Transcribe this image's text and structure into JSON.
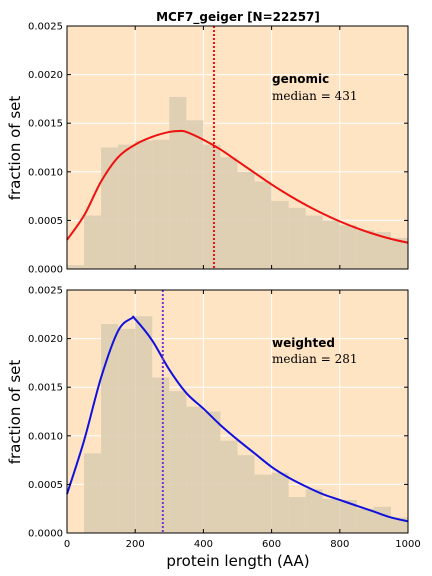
{
  "chart_data": [
    {
      "type": "bar",
      "title": "MCF7_geiger [N=22257]",
      "ylabel": "fraction of set",
      "xlabel": "",
      "xlim": [
        0,
        1000
      ],
      "ylim": [
        0,
        0.0025
      ],
      "y_ticks": [
        "0.0000",
        "0.0005",
        "0.0010",
        "0.0015",
        "0.0020",
        "0.0025"
      ],
      "x_ticks": [],
      "bin_edges": [
        0,
        50,
        100,
        150,
        200,
        250,
        300,
        350,
        400,
        450,
        500,
        550,
        600,
        650,
        700,
        750,
        800,
        850,
        900,
        950,
        1000
      ],
      "values": [
        4e-05,
        0.00055,
        0.00125,
        0.00128,
        0.00132,
        0.00133,
        0.00177,
        0.00153,
        0.00128,
        0.00115,
        0.001,
        0.0009,
        0.0007,
        0.00063,
        0.00055,
        0.0005,
        0.00045,
        0.0004,
        0.00038,
        0.00032
      ],
      "curve": {
        "x": [
          0,
          50,
          100,
          150,
          200,
          250,
          300,
          330,
          350,
          400,
          450,
          500,
          550,
          600,
          650,
          700,
          750,
          800,
          850,
          900,
          950,
          1000
        ],
        "y": [
          0.0003,
          0.00055,
          0.0009,
          0.00115,
          0.00128,
          0.00136,
          0.00141,
          0.00142,
          0.00141,
          0.00133,
          0.00123,
          0.00111,
          0.00099,
          0.00087,
          0.00076,
          0.00066,
          0.00057,
          0.00049,
          0.00042,
          0.00036,
          0.00031,
          0.00027
        ]
      },
      "median": {
        "label": "median = 431",
        "value": 431
      },
      "annotation": "genomic",
      "colors": {
        "curve": "#ee1111",
        "median_line": "#ee1111",
        "bars": "#dcceb2",
        "background": "#ffe4c4",
        "grid": "#ffffff"
      }
    },
    {
      "type": "bar",
      "title": "",
      "ylabel": "fraction of set",
      "xlabel": "protein length (AA)",
      "xlim": [
        0,
        1000
      ],
      "ylim": [
        0,
        0.0025
      ],
      "y_ticks": [
        "0.0000",
        "0.0005",
        "0.0010",
        "0.0015",
        "0.0020",
        "0.0025"
      ],
      "x_ticks": [
        "0",
        "200",
        "400",
        "600",
        "800",
        "1000"
      ],
      "bin_edges": [
        0,
        50,
        100,
        150,
        200,
        250,
        300,
        350,
        400,
        450,
        500,
        550,
        600,
        650,
        700,
        750,
        800,
        850,
        900,
        950,
        1000
      ],
      "values": [
        0.0,
        0.00082,
        0.00215,
        0.0021,
        0.00223,
        0.0016,
        0.00146,
        0.0013,
        0.00125,
        0.00095,
        0.0008,
        0.0006,
        0.00062,
        0.00037,
        0.00045,
        0.00035,
        0.00034,
        0.00025,
        0.00027,
        0.00016
      ],
      "curve": {
        "x": [
          0,
          50,
          100,
          150,
          190,
          200,
          250,
          300,
          350,
          400,
          450,
          500,
          550,
          600,
          650,
          700,
          750,
          800,
          850,
          900,
          950,
          1000
        ],
        "y": [
          0.0004,
          0.00095,
          0.0016,
          0.00208,
          0.00221,
          0.0022,
          0.00198,
          0.00168,
          0.00144,
          0.00128,
          0.00111,
          0.00096,
          0.00082,
          0.00068,
          0.00057,
          0.00048,
          0.0004,
          0.00034,
          0.00028,
          0.00022,
          0.00016,
          0.00012
        ]
      },
      "median": {
        "label": "median = 281",
        "value": 281
      },
      "annotation": "weighted",
      "colors": {
        "curve": "#1111dd",
        "median_line": "#7733cc",
        "bars": "#dcceb2",
        "background": "#ffe4c4",
        "grid": "#ffffff"
      }
    }
  ]
}
